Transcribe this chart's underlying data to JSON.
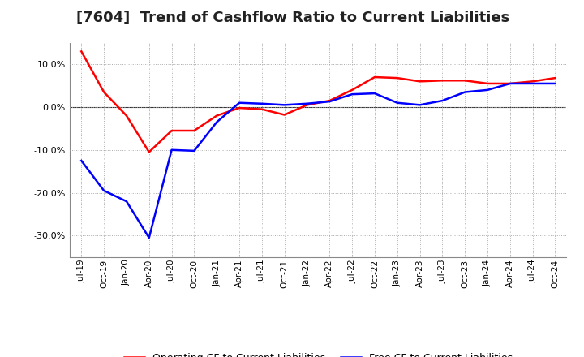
{
  "title": "[7604]  Trend of Cashflow Ratio to Current Liabilities",
  "title_fontsize": 13,
  "background_color": "#ffffff",
  "plot_background": "#ffffff",
  "grid_color": "#aaaaaa",
  "x_labels": [
    "Jul-19",
    "Oct-19",
    "Jan-20",
    "Apr-20",
    "Jul-20",
    "Oct-20",
    "Jan-21",
    "Apr-21",
    "Jul-21",
    "Oct-21",
    "Jan-22",
    "Apr-22",
    "Jul-22",
    "Oct-22",
    "Jan-23",
    "Apr-23",
    "Jul-23",
    "Oct-23",
    "Jan-24",
    "Apr-24",
    "Jul-24",
    "Oct-24"
  ],
  "operating_cf": [
    13.0,
    3.5,
    -2.0,
    -10.5,
    -5.5,
    -5.5,
    -2.0,
    -0.2,
    -0.5,
    -1.8,
    0.5,
    1.5,
    4.0,
    7.0,
    6.8,
    6.0,
    6.2,
    6.2,
    5.5,
    5.5,
    6.0,
    6.8
  ],
  "free_cf": [
    -12.5,
    -19.5,
    -22.0,
    -30.5,
    -10.0,
    -10.2,
    -3.5,
    1.0,
    0.8,
    0.5,
    0.8,
    1.3,
    3.0,
    3.2,
    1.0,
    0.5,
    1.5,
    3.5,
    4.0,
    5.5,
    5.5,
    5.5
  ],
  "ylim": [
    -35,
    15
  ],
  "yticks": [
    -30,
    -20,
    -10,
    0,
    10
  ],
  "operating_color": "#ff0000",
  "free_color": "#0000ff",
  "legend_operating": "Operating CF to Current Liabilities",
  "legend_free": "Free CF to Current Liabilities",
  "line_width": 1.8
}
